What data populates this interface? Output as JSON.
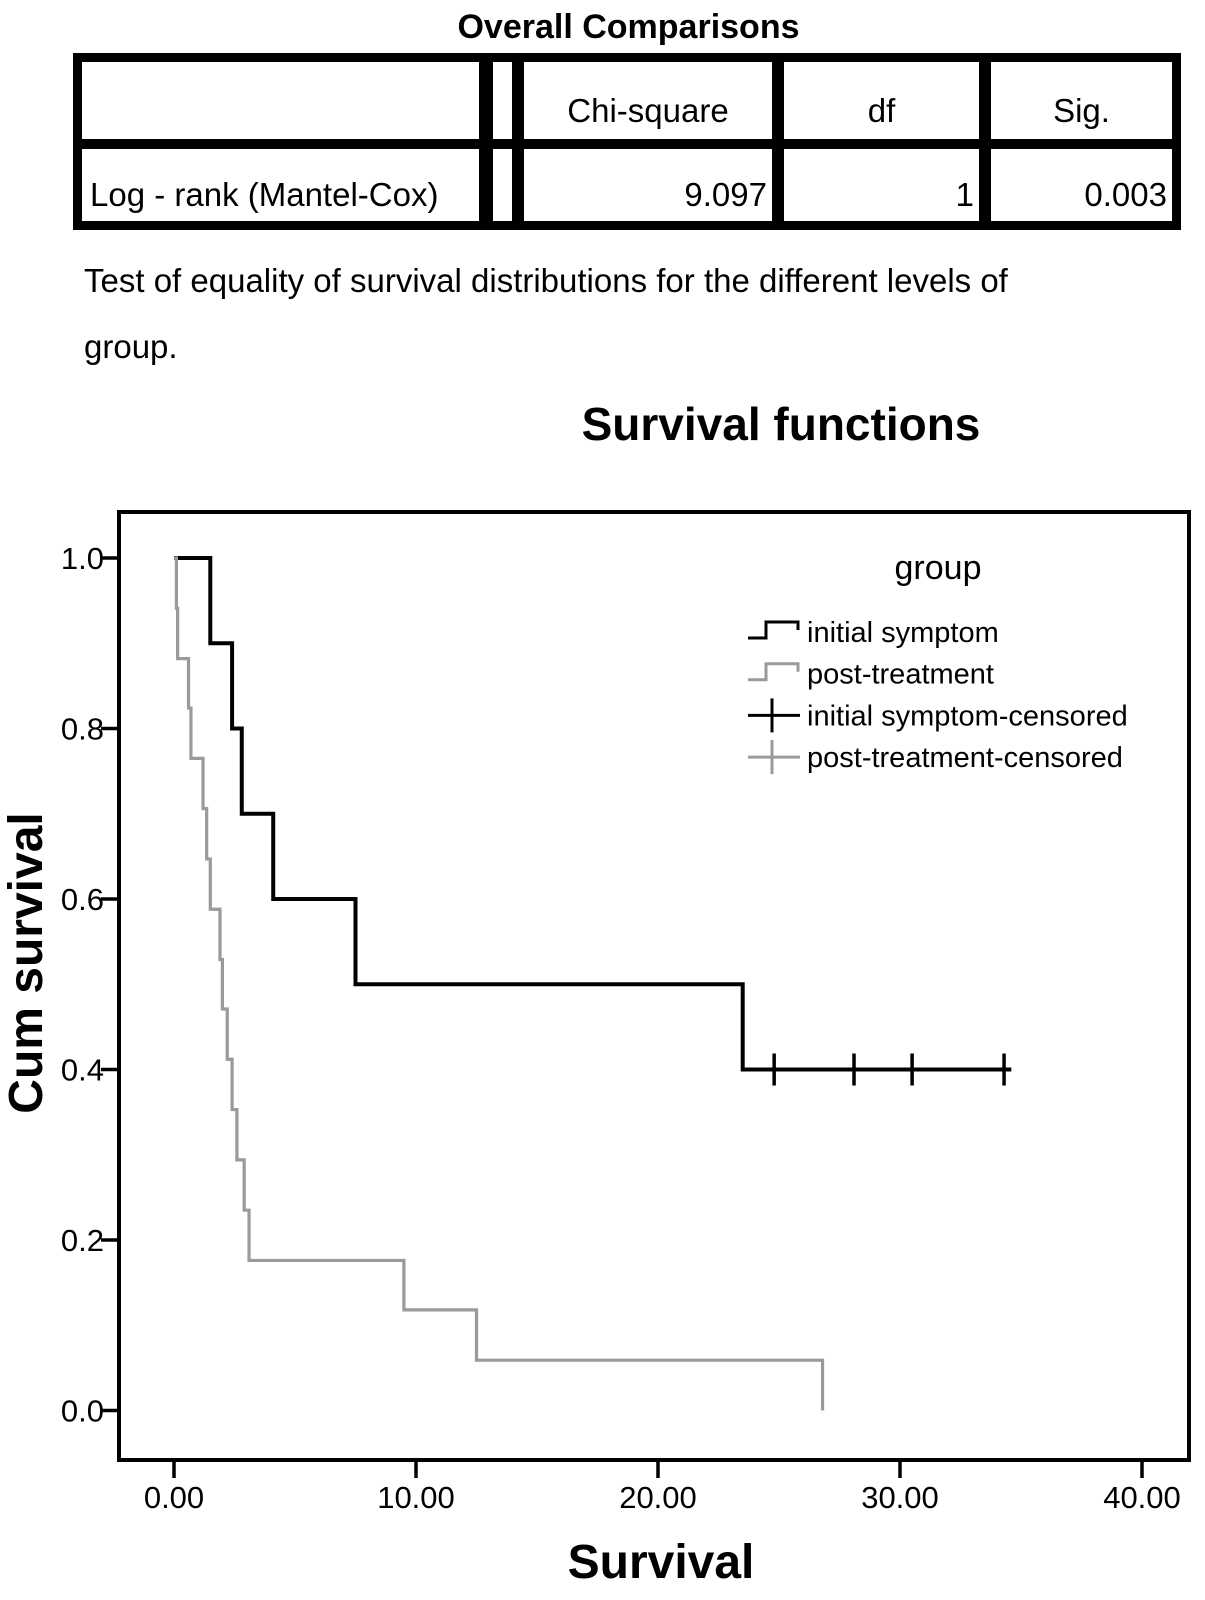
{
  "table": {
    "title": "Overall Comparisons",
    "columns": [
      "",
      "Chi-square",
      "df",
      "Sig."
    ],
    "rows": [
      {
        "label": "Log - rank (Mantel-Cox)",
        "chi_square": "9.097",
        "df": "1",
        "sig": "0.003"
      }
    ],
    "footnote_line1": "Test of equality of survival distributions for the different levels of",
    "footnote_line2": "group."
  },
  "chart": {
    "title": "Survival functions",
    "x_label": "Survival",
    "y_label": "Cum survival",
    "x_ticks": [
      "0.00",
      "10.00",
      "20.00",
      "30.00",
      "40.00"
    ],
    "y_ticks": [
      "1.0",
      "0.8",
      "0.6",
      "0.4",
      "0.2",
      "0.0"
    ],
    "legend": {
      "title": "group",
      "entries": [
        {
          "label": "initial symptom",
          "color": "#000000",
          "type": "step"
        },
        {
          "label": "post-treatment",
          "color": "#9a9a9a",
          "type": "step"
        },
        {
          "label": "initial symptom-censored",
          "color": "#000000",
          "type": "censor"
        },
        {
          "label": "post-treatment-censored",
          "color": "#9a9a9a",
          "type": "censor"
        }
      ]
    }
  },
  "chart_data": {
    "type": "line",
    "subtype": "kaplan-meier-step",
    "title": "Survival functions",
    "xlabel": "Survival",
    "ylabel": "Cum survival",
    "x_tick_values": [
      0,
      10,
      20,
      30,
      40
    ],
    "y_tick_values": [
      1.0,
      0.8,
      0.6,
      0.4,
      0.2,
      0.0
    ],
    "xlim": [
      -2.3,
      41.9
    ],
    "ylim": [
      -0.06,
      1.05
    ],
    "grid": false,
    "legend_position": "upper-right-inside",
    "series": [
      {
        "name": "initial symptom",
        "color": "#000000",
        "stroke_width": 4,
        "steps": [
          [
            0,
            1.0
          ],
          [
            1.5,
            0.9
          ],
          [
            2.4,
            0.8
          ],
          [
            2.8,
            0.7
          ],
          [
            4.1,
            0.6
          ],
          [
            7.5,
            0.5
          ],
          [
            23.5,
            0.4
          ]
        ],
        "end_x": 34.6,
        "censored": [
          [
            24.8,
            0.4
          ],
          [
            28.1,
            0.4
          ],
          [
            30.5,
            0.4
          ],
          [
            34.3,
            0.4
          ]
        ]
      },
      {
        "name": "post-treatment",
        "color": "#9a9a9a",
        "stroke_width": 3.2,
        "steps": [
          [
            0,
            1.0
          ],
          [
            0.1,
            0.941
          ],
          [
            0.15,
            0.882
          ],
          [
            0.6,
            0.824
          ],
          [
            0.7,
            0.765
          ],
          [
            1.2,
            0.706
          ],
          [
            1.35,
            0.647
          ],
          [
            1.5,
            0.588
          ],
          [
            1.9,
            0.529
          ],
          [
            2.0,
            0.471
          ],
          [
            2.2,
            0.412
          ],
          [
            2.4,
            0.353
          ],
          [
            2.6,
            0.294
          ],
          [
            2.9,
            0.235
          ],
          [
            3.1,
            0.176
          ],
          [
            9.5,
            0.118
          ],
          [
            12.5,
            0.059
          ],
          [
            26.8,
            0.0
          ]
        ],
        "end_x": 26.8,
        "censored": []
      }
    ]
  }
}
